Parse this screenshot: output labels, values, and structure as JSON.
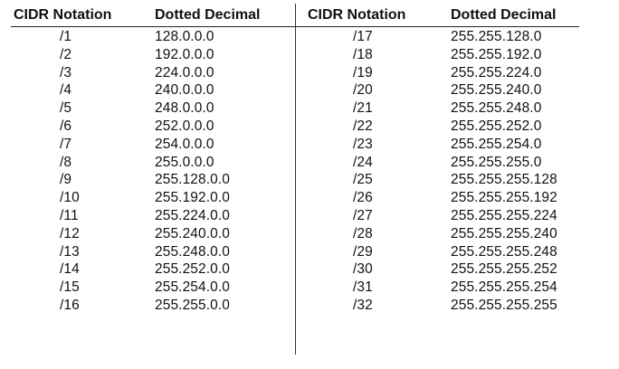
{
  "headers": {
    "left_cidr": "CIDR Notation",
    "left_decimal": "Dotted Decimal",
    "right_cidr": "CIDR Notation",
    "right_decimal": "Dotted Decimal"
  },
  "rows": [
    {
      "left_cidr": "/1",
      "left_decimal": "128.0.0.0",
      "right_cidr": "/17",
      "right_decimal": "255.255.128.0"
    },
    {
      "left_cidr": "/2",
      "left_decimal": "192.0.0.0",
      "right_cidr": "/18",
      "right_decimal": "255.255.192.0"
    },
    {
      "left_cidr": "/3",
      "left_decimal": "224.0.0.0",
      "right_cidr": "/19",
      "right_decimal": "255.255.224.0"
    },
    {
      "left_cidr": "/4",
      "left_decimal": "240.0.0.0",
      "right_cidr": "/20",
      "right_decimal": "255.255.240.0"
    },
    {
      "left_cidr": "/5",
      "left_decimal": "248.0.0.0",
      "right_cidr": "/21",
      "right_decimal": "255.255.248.0"
    },
    {
      "left_cidr": "/6",
      "left_decimal": "252.0.0.0",
      "right_cidr": "/22",
      "right_decimal": "255.255.252.0"
    },
    {
      "left_cidr": "/7",
      "left_decimal": "254.0.0.0",
      "right_cidr": "/23",
      "right_decimal": "255.255.254.0"
    },
    {
      "left_cidr": "/8",
      "left_decimal": "255.0.0.0",
      "right_cidr": "/24",
      "right_decimal": "255.255.255.0"
    },
    {
      "left_cidr": "/9",
      "left_decimal": "255.128.0.0",
      "right_cidr": "/25",
      "right_decimal": "255.255.255.128"
    },
    {
      "left_cidr": "/10",
      "left_decimal": "255.192.0.0",
      "right_cidr": "/26",
      "right_decimal": "255.255.255.192"
    },
    {
      "left_cidr": "/11",
      "left_decimal": "255.224.0.0",
      "right_cidr": "/27",
      "right_decimal": "255.255.255.224"
    },
    {
      "left_cidr": "/12",
      "left_decimal": "255.240.0.0",
      "right_cidr": "/28",
      "right_decimal": "255.255.255.240"
    },
    {
      "left_cidr": "/13",
      "left_decimal": "255.248.0.0",
      "right_cidr": "/29",
      "right_decimal": "255.255.255.248"
    },
    {
      "left_cidr": "/14",
      "left_decimal": "255.252.0.0",
      "right_cidr": "/30",
      "right_decimal": "255.255.255.252"
    },
    {
      "left_cidr": "/15",
      "left_decimal": "255.254.0.0",
      "right_cidr": "/31",
      "right_decimal": "255.255.255.254"
    },
    {
      "left_cidr": "/16",
      "left_decimal": "255.255.0.0",
      "right_cidr": "/32",
      "right_decimal": "255.255.255.255"
    }
  ]
}
